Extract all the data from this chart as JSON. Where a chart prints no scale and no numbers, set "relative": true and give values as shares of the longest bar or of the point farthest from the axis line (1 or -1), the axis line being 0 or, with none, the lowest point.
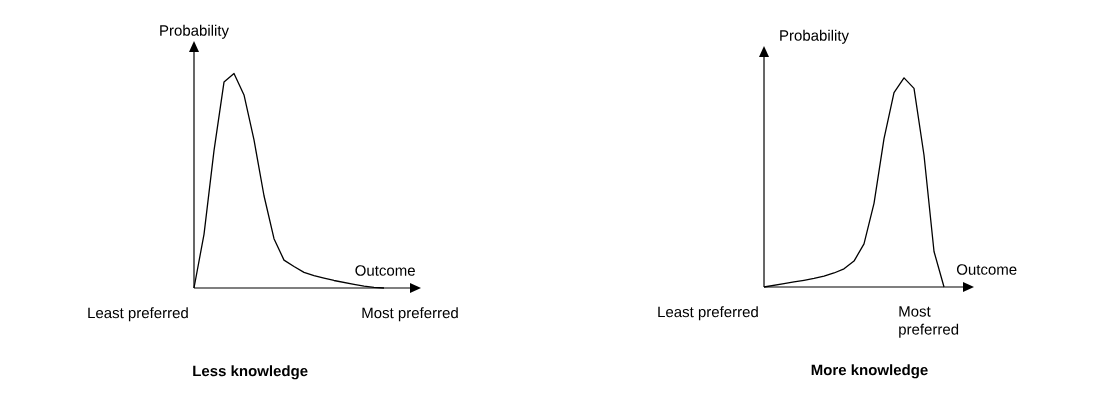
{
  "chart_data": [
    {
      "type": "line",
      "relative": true,
      "title": "Less knowledge",
      "xlabel": "Outcome",
      "ylabel": "Probability",
      "color": "#000000",
      "categories": [
        null,
        null,
        null,
        null,
        null,
        null,
        null,
        null,
        null,
        null,
        null,
        null,
        null,
        null,
        null,
        null,
        null,
        null,
        null,
        null
      ],
      "values": [
        0,
        0.25,
        0.64,
        0.96,
        1,
        0.9,
        0.69,
        0.43,
        0.23,
        0.13,
        0.1,
        0.073,
        0.058,
        0.046,
        0.035,
        0.026,
        0.017,
        0.009,
        0.003,
        0
      ],
      "annotations": [
        "Least preferred",
        "Most preferred"
      ]
    },
    {
      "type": "line",
      "relative": true,
      "title": "More knowledge",
      "xlabel": "Outcome",
      "ylabel": "Probability",
      "color": "#000000",
      "categories": [
        null,
        null,
        null,
        null,
        null,
        null,
        null,
        null,
        null,
        null,
        null,
        null,
        null,
        null,
        null,
        null,
        null,
        null,
        null
      ],
      "values": [
        0,
        0.008,
        0.016,
        0.024,
        0.032,
        0.041,
        0.052,
        0.067,
        0.087,
        0.124,
        0.206,
        0.4,
        0.71,
        0.93,
        1,
        0.95,
        0.63,
        0.17,
        0
      ],
      "annotations": [
        "Least preferred",
        "Most preferred"
      ]
    }
  ]
}
